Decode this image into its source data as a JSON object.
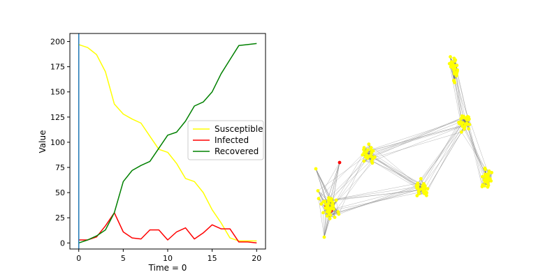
{
  "chart_data": [
    {
      "type": "line",
      "title": "",
      "xlabel": "Time = 0",
      "ylabel": "Value",
      "xlim": [
        -1,
        21
      ],
      "ylim": [
        -6,
        208
      ],
      "xticks": [
        0,
        5,
        10,
        15,
        20
      ],
      "xtick_labels": [
        "0",
        "5",
        "10",
        "15",
        "20"
      ],
      "yticks": [
        0,
        25,
        50,
        75,
        100,
        125,
        150,
        175,
        200
      ],
      "ytick_labels": [
        "0",
        "25",
        "50",
        "75",
        "100",
        "125",
        "150",
        "175",
        "200"
      ],
      "grid": false,
      "legend_position": "center-right",
      "x": [
        0,
        1,
        2,
        3,
        4,
        5,
        6,
        7,
        8,
        9,
        10,
        11,
        12,
        13,
        14,
        15,
        16,
        17,
        18,
        19,
        20
      ],
      "series": [
        {
          "name": "Susceptible",
          "color": "#ffff00",
          "values": [
            197,
            194,
            187,
            170,
            138,
            128,
            123,
            119,
            106,
            93,
            90,
            79,
            64,
            61,
            50,
            33,
            20,
            5,
            2,
            2,
            2
          ]
        },
        {
          "name": "Infected",
          "color": "#ff0000",
          "values": [
            3,
            3,
            6,
            17,
            30,
            11,
            5,
            4,
            13,
            13,
            3,
            11,
            15,
            4,
            10,
            18,
            14,
            14,
            1,
            1,
            0
          ]
        },
        {
          "name": "Recovered",
          "color": "#008000",
          "values": [
            0,
            3,
            7,
            13,
            30,
            61,
            72,
            77,
            81,
            94,
            107,
            110,
            121,
            136,
            140,
            150,
            168,
            182,
            196,
            197,
            198
          ]
        }
      ],
      "vline": {
        "x": 0,
        "color": "#1f77b4"
      }
    },
    {
      "type": "network",
      "node_color": "#ffff00",
      "infected_node_color": "#ff0000",
      "edge_color": "#777777",
      "clusters": [
        {
          "id": "c1",
          "nodes": 40,
          "infected": 2
        },
        {
          "id": "c2",
          "nodes": 26,
          "infected": 0
        },
        {
          "id": "c3",
          "nodes": 30,
          "infected": 0
        },
        {
          "id": "c4",
          "nodes": 30,
          "infected": 0
        },
        {
          "id": "c5",
          "nodes": 30,
          "infected": 0
        },
        {
          "id": "c6",
          "nodes": 30,
          "infected": 0
        }
      ],
      "links": [
        [
          "c1",
          "c2"
        ],
        [
          "c2",
          "c3"
        ],
        [
          "c3",
          "c5"
        ],
        [
          "c4",
          "c5"
        ],
        [
          "c5",
          "c6"
        ],
        [
          "c2",
          "c5"
        ],
        [
          "c1",
          "c3"
        ]
      ]
    }
  ]
}
